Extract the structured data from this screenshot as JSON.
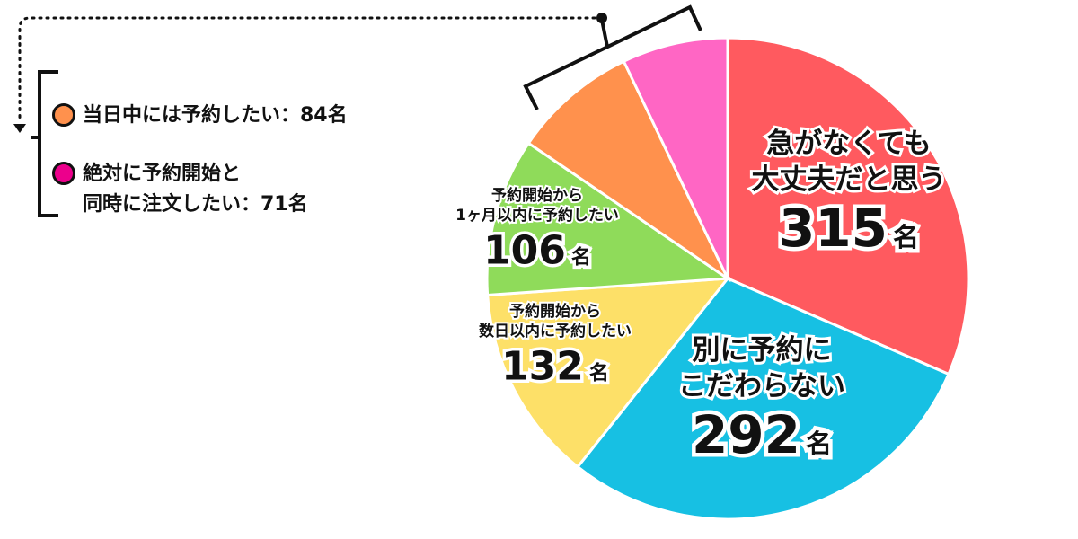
{
  "chart_data": {
    "type": "pie",
    "unit": "名",
    "slices": [
      {
        "label": "急がなくても\n大丈夫だと思う",
        "value": 315,
        "color": "#ff5a5f"
      },
      {
        "label": "別に予約に\nこだわらない",
        "value": 292,
        "color": "#17c0e3"
      },
      {
        "label": "予約開始から\n数日以内に予約したい",
        "value": 132,
        "color": "#fde068"
      },
      {
        "label": "予約開始から\n1ヶ月以内に予約したい",
        "value": 106,
        "color": "#8fdb5a"
      },
      {
        "label": "当日中には予約したい",
        "value": 84,
        "color": "#ff914d"
      },
      {
        "label": "絶対に予約開始と\n同時に注文したい",
        "value": 71,
        "color": "#ff66c4"
      }
    ]
  },
  "legend": [
    {
      "text": "当日中には予約したい：84名",
      "color": "#ff914d"
    },
    {
      "text": "絶対に予約開始と\n同時に注文したい：71名",
      "color": "#ec008c"
    }
  ]
}
